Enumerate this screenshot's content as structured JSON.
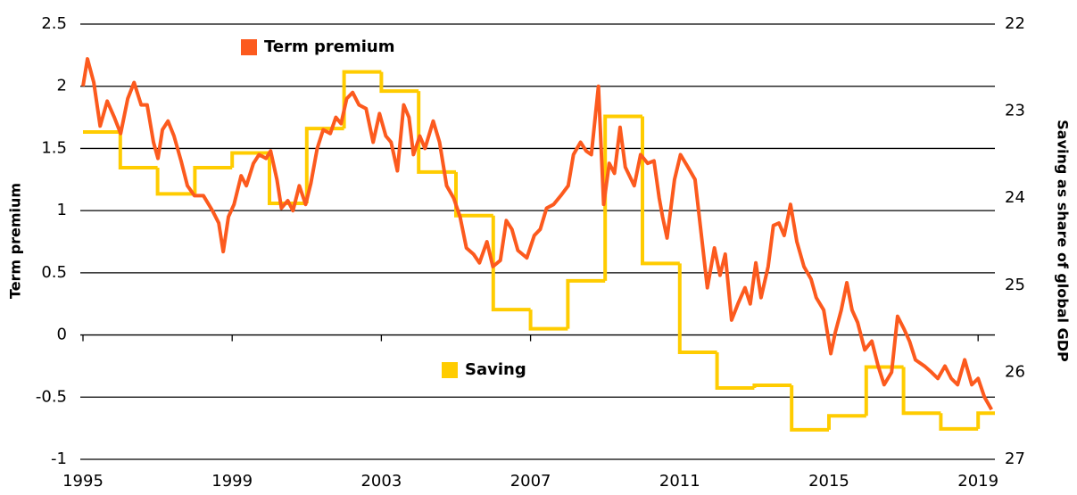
{
  "chart_data": {
    "type": "line",
    "ylabel": "Term premium",
    "y2label": "Saving as share of global GDP",
    "xlim": [
      1995,
      2019.45
    ],
    "xticks": [
      1995,
      1999,
      2003,
      2007,
      2011,
      2015,
      2019
    ],
    "ylim": [
      -1,
      2.5
    ],
    "yticks": [
      -1,
      -0.5,
      0,
      0.5,
      1,
      1.5,
      2,
      2.5
    ],
    "y2lim": [
      27,
      22
    ],
    "y2ticks": [
      22,
      23,
      24,
      25,
      26,
      27
    ],
    "grid": true,
    "series": [
      {
        "name": "Term premium",
        "color": "#fc5a1e",
        "axis": "y",
        "x": [
          1995.0,
          1995.12,
          1995.29,
          1995.46,
          1995.65,
          1995.84,
          1996.01,
          1996.2,
          1996.37,
          1996.56,
          1996.72,
          1996.89,
          1997.01,
          1997.13,
          1997.28,
          1997.44,
          1997.63,
          1997.8,
          1997.99,
          1998.23,
          1998.47,
          1998.64,
          1998.76,
          1998.9,
          1999.05,
          1999.24,
          1999.38,
          1999.57,
          1999.72,
          1999.91,
          2000.03,
          2000.2,
          2000.32,
          2000.49,
          2000.63,
          2000.8,
          2000.97,
          2001.11,
          2001.28,
          2001.44,
          2001.63,
          2001.78,
          2001.92,
          2002.07,
          2002.23,
          2002.4,
          2002.59,
          2002.78,
          2002.95,
          2003.12,
          2003.26,
          2003.43,
          2003.6,
          2003.74,
          2003.86,
          2004.03,
          2004.17,
          2004.39,
          2004.56,
          2004.75,
          2004.94,
          2005.11,
          2005.28,
          2005.47,
          2005.63,
          2005.83,
          2005.99,
          2006.19,
          2006.35,
          2006.5,
          2006.66,
          2006.9,
          2007.1,
          2007.26,
          2007.43,
          2007.62,
          2007.81,
          2008.01,
          2008.15,
          2008.34,
          2008.49,
          2008.63,
          2008.82,
          2008.96,
          2009.11,
          2009.25,
          2009.4,
          2009.54,
          2009.78,
          2009.95,
          2010.14,
          2010.31,
          2010.45,
          2010.54,
          2010.66,
          2010.86,
          2011.02,
          2011.22,
          2011.41,
          2011.6,
          2011.74,
          2011.93,
          2012.08,
          2012.22,
          2012.39,
          2012.56,
          2012.75,
          2012.89,
          2013.04,
          2013.18,
          2013.37,
          2013.51,
          2013.66,
          2013.8,
          2013.97,
          2014.14,
          2014.33,
          2014.52,
          2014.66,
          2014.86,
          2015.05,
          2015.17,
          2015.33,
          2015.48,
          2015.62,
          2015.77,
          2015.96,
          2016.15,
          2016.32,
          2016.48,
          2016.68,
          2016.84,
          2017.01,
          2017.16,
          2017.32,
          2017.56,
          2017.75,
          2017.92,
          2018.11,
          2018.28,
          2018.45,
          2018.64,
          2018.83,
          2019.0,
          2019.17,
          2019.36
        ],
        "values": [
          2.0,
          2.22,
          2.03,
          1.68,
          1.88,
          1.75,
          1.62,
          1.9,
          2.03,
          1.85,
          1.85,
          1.55,
          1.42,
          1.65,
          1.72,
          1.6,
          1.4,
          1.2,
          1.12,
          1.12,
          1.0,
          0.9,
          0.67,
          0.95,
          1.05,
          1.28,
          1.2,
          1.38,
          1.45,
          1.42,
          1.48,
          1.25,
          1.02,
          1.08,
          1.0,
          1.2,
          1.05,
          1.22,
          1.5,
          1.65,
          1.62,
          1.75,
          1.7,
          1.9,
          1.95,
          1.85,
          1.82,
          1.55,
          1.78,
          1.6,
          1.55,
          1.32,
          1.85,
          1.75,
          1.45,
          1.6,
          1.5,
          1.72,
          1.55,
          1.2,
          1.1,
          0.95,
          0.7,
          0.65,
          0.58,
          0.75,
          0.55,
          0.6,
          0.92,
          0.85,
          0.68,
          0.62,
          0.8,
          0.85,
          1.02,
          1.05,
          1.12,
          1.2,
          1.45,
          1.55,
          1.48,
          1.45,
          2.0,
          1.05,
          1.38,
          1.3,
          1.67,
          1.35,
          1.2,
          1.45,
          1.38,
          1.4,
          1.1,
          0.95,
          0.78,
          1.25,
          1.45,
          1.35,
          1.25,
          0.75,
          0.38,
          0.7,
          0.48,
          0.65,
          0.12,
          0.25,
          0.38,
          0.25,
          0.58,
          0.3,
          0.55,
          0.88,
          0.9,
          0.8,
          1.05,
          0.75,
          0.55,
          0.45,
          0.3,
          0.2,
          -0.15,
          0.02,
          0.2,
          0.42,
          0.2,
          0.1,
          -0.12,
          -0.05,
          -0.25,
          -0.4,
          -0.3,
          0.15,
          0.05,
          -0.05,
          -0.2,
          -0.25,
          -0.3,
          -0.35,
          -0.25,
          -0.35,
          -0.4,
          -0.2,
          -0.4,
          -0.35,
          -0.5,
          -0.6
        ]
      },
      {
        "name": "Saving",
        "color": "#ffcc00",
        "axis": "y2",
        "step": true,
        "x": [
          1995,
          1996,
          1997,
          1998,
          1999,
          2000,
          2001,
          2002,
          2003,
          2004,
          2005,
          2006,
          2007,
          2008,
          2009,
          2010,
          2011,
          2012,
          2013,
          2014,
          2015,
          2016,
          2017,
          2018,
          2019
        ],
        "values": [
          23.24,
          23.65,
          23.95,
          23.65,
          23.48,
          24.06,
          23.2,
          22.55,
          22.77,
          23.7,
          24.2,
          25.28,
          25.5,
          24.95,
          23.06,
          24.75,
          25.77,
          26.18,
          26.15,
          26.66,
          26.5,
          25.94,
          26.47,
          26.65,
          26.47
        ]
      }
    ]
  }
}
